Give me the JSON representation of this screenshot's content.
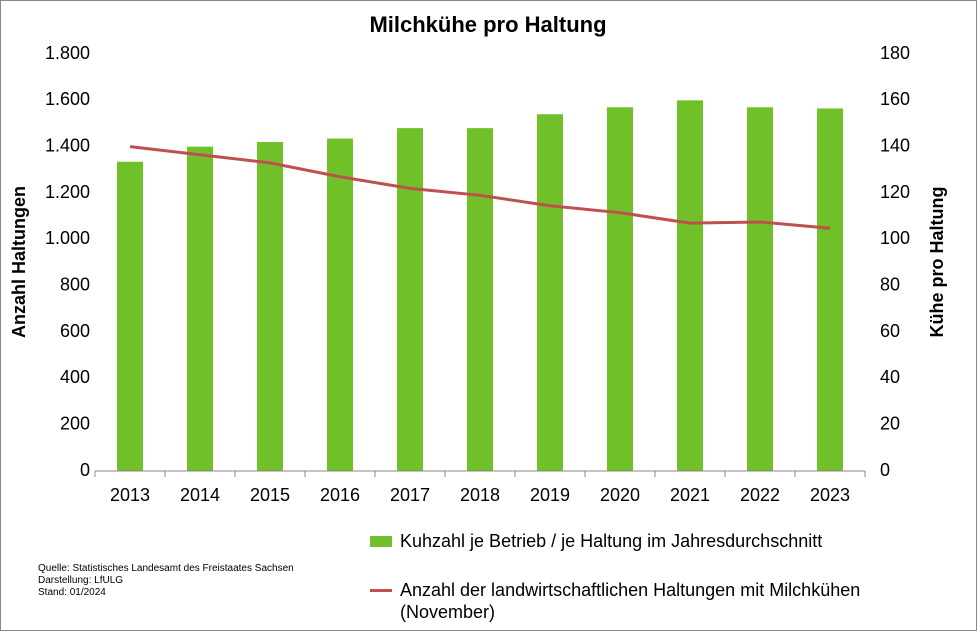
{
  "chart_data": {
    "type": "bar",
    "title": "Milchkühe pro Haltung",
    "ylabel": "Anzahl Haltungen",
    "y2label": "Kühe pro Haltung",
    "categories": [
      "2013",
      "2014",
      "2015",
      "2016",
      "2017",
      "2018",
      "2019",
      "2020",
      "2021",
      "2022",
      "2023"
    ],
    "series": [
      {
        "name": "Kuhzahl je Betrieb / je Haltung im Jahresdurchschnitt",
        "type": "bar",
        "axis": "y2",
        "color": "#70c02a",
        "values": [
          133.5,
          140,
          142,
          143.5,
          148,
          148,
          154,
          157,
          160,
          157,
          156.5
        ]
      },
      {
        "name": "Anzahl der landwirtschaftlichen Haltungen mit Milchkühen (November)",
        "type": "line",
        "axis": "y",
        "color": "#c0504d",
        "values": [
          1400,
          1365,
          1330,
          1270,
          1220,
          1190,
          1145,
          1115,
          1070,
          1075,
          1048
        ]
      }
    ],
    "ylim": [
      0,
      1800
    ],
    "yticks": [
      0,
      200,
      400,
      600,
      800,
      {
        "value": 1000,
        "label": "1.000"
      },
      {
        "value": 1200,
        "label": "1.200"
      },
      {
        "value": 1400,
        "label": "1.400"
      },
      {
        "value": 1600,
        "label": "1.600"
      },
      {
        "value": 1800,
        "label": "1.800"
      }
    ],
    "y2lim": [
      0,
      180
    ],
    "y2ticks": [
      0,
      20,
      40,
      60,
      80,
      100,
      120,
      140,
      160,
      180
    ],
    "grid": false,
    "notes": [
      "Quelle:  Statistisches Landesamt des Freistaates Sachsen",
      "Darstellung: LfULG",
      "Stand: 01/2024"
    ]
  }
}
